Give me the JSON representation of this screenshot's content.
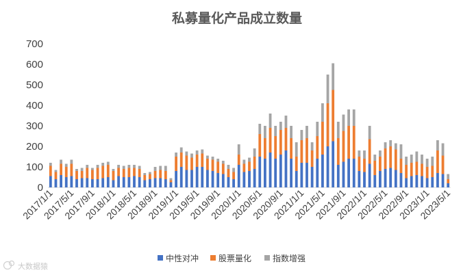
{
  "watermark": "大数据猿",
  "chart_data": {
    "type": "bar",
    "stacked": true,
    "title": "私募量化产品成立数量",
    "xlabel": "",
    "ylabel": "",
    "ylim": [
      0,
      700
    ],
    "yticks": [
      0,
      100,
      200,
      300,
      400,
      500,
      600,
      700
    ],
    "grid": false,
    "legend_position": "bottom",
    "xtick_labels": [
      {
        "label": "2017/1/1",
        "index": 0
      },
      {
        "label": "2017/5/1",
        "index": 4
      },
      {
        "label": "2017/9/1",
        "index": 8
      },
      {
        "label": "2018/1/1",
        "index": 12
      },
      {
        "label": "2018/5/1",
        "index": 16
      },
      {
        "label": "2018/9/1",
        "index": 20
      },
      {
        "label": "2019/1/1",
        "index": 24
      },
      {
        "label": "2019/5/1",
        "index": 28
      },
      {
        "label": "2019/9/1",
        "index": 32
      },
      {
        "label": "2020/1/1",
        "index": 36
      },
      {
        "label": "2020/5/1",
        "index": 40
      },
      {
        "label": "2020/9/1",
        "index": 44
      },
      {
        "label": "2021/1/1",
        "index": 48
      },
      {
        "label": "2021/5/1",
        "index": 52
      },
      {
        "label": "2021/9/1",
        "index": 56
      },
      {
        "label": "2022/1/1",
        "index": 60
      },
      {
        "label": "2022/5/1",
        "index": 64
      },
      {
        "label": "2022/9/1",
        "index": 68
      },
      {
        "label": "2023/1/1",
        "index": 72
      },
      {
        "label": "2023/5/1",
        "index": 76
      }
    ],
    "series": [
      {
        "name": "中性对冲",
        "color": "#4472C4",
        "values": [
          55,
          40,
          60,
          50,
          55,
          40,
          45,
          45,
          40,
          40,
          45,
          50,
          35,
          55,
          50,
          50,
          55,
          50,
          35,
          40,
          45,
          45,
          40,
          25,
          80,
          100,
          85,
          85,
          100,
          100,
          85,
          80,
          70,
          65,
          50,
          40,
          110,
          75,
          80,
          90,
          150,
          140,
          170,
          140,
          160,
          180,
          140,
          80,
          120,
          120,
          100,
          140,
          160,
          200,
          225,
          110,
          125,
          140,
          140,
          80,
          75,
          115,
          60,
          80,
          90,
          95,
          85,
          70,
          45,
          55,
          60,
          55,
          45,
          50,
          70,
          65,
          20
        ]
      },
      {
        "name": "股票量化",
        "color": "#ED7D31",
        "values": [
          50,
          35,
          55,
          50,
          60,
          40,
          35,
          50,
          45,
          55,
          60,
          60,
          45,
          40,
          40,
          45,
          40,
          40,
          25,
          25,
          35,
          40,
          40,
          10,
          70,
          70,
          70,
          60,
          60,
          65,
          55,
          55,
          55,
          50,
          40,
          35,
          50,
          40,
          45,
          60,
          110,
          100,
          120,
          110,
          120,
          110,
          100,
          70,
          110,
          120,
          80,
          110,
          160,
          210,
          250,
          130,
          150,
          160,
          160,
          70,
          65,
          120,
          70,
          70,
          100,
          105,
          100,
          70,
          65,
          65,
          65,
          60,
          55,
          55,
          110,
          90,
          20
        ]
      },
      {
        "name": "指数增强",
        "color": "#A5A5A5",
        "values": [
          15,
          10,
          20,
          15,
          20,
          10,
          15,
          15,
          10,
          15,
          15,
          15,
          10,
          15,
          15,
          15,
          15,
          15,
          10,
          10,
          20,
          20,
          25,
          10,
          20,
          25,
          20,
          20,
          20,
          20,
          15,
          15,
          15,
          15,
          20,
          20,
          50,
          20,
          20,
          40,
          50,
          60,
          70,
          50,
          40,
          60,
          60,
          70,
          50,
          60,
          40,
          70,
          90,
          140,
          130,
          80,
          80,
          80,
          80,
          30,
          40,
          65,
          30,
          30,
          30,
          30,
          30,
          70,
          40,
          40,
          50,
          45,
          40,
          45,
          50,
          60,
          25
        ]
      }
    ]
  }
}
